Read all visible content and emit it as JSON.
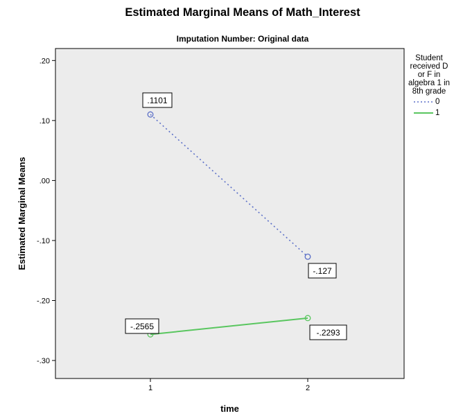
{
  "chart_data": {
    "type": "line",
    "title": "Estimated Marginal Means of Math_Interest",
    "subtitle": "Imputation Number: Original data",
    "xlabel": "time",
    "ylabel": "Estimated Marginal Means",
    "categories": [
      "1",
      "2"
    ],
    "ylim": [
      -0.33,
      0.22
    ],
    "yticks": [
      {
        "value": 0.2,
        "label": ".20"
      },
      {
        "value": 0.1,
        "label": ".10"
      },
      {
        "value": 0.0,
        "label": ".00"
      },
      {
        "value": -0.1,
        "label": "-.10"
      },
      {
        "value": -0.2,
        "label": "-.20"
      },
      {
        "value": -0.3,
        "label": "-.30"
      }
    ],
    "legend": {
      "title": "Student received D or F in algebra 1 in 8th grade",
      "placement": "right"
    },
    "series": [
      {
        "name": "0",
        "values": [
          0.1101,
          -0.127
        ],
        "labels": [
          ".1101",
          "-.127"
        ],
        "color": "#5b6fc7",
        "style": "dotted"
      },
      {
        "name": "1",
        "values": [
          -0.2565,
          -0.2293
        ],
        "labels": [
          "-.2565",
          "-.2293"
        ],
        "color": "#59c65f",
        "style": "solid"
      }
    ],
    "plot_background": "#ececec",
    "grid": false
  }
}
